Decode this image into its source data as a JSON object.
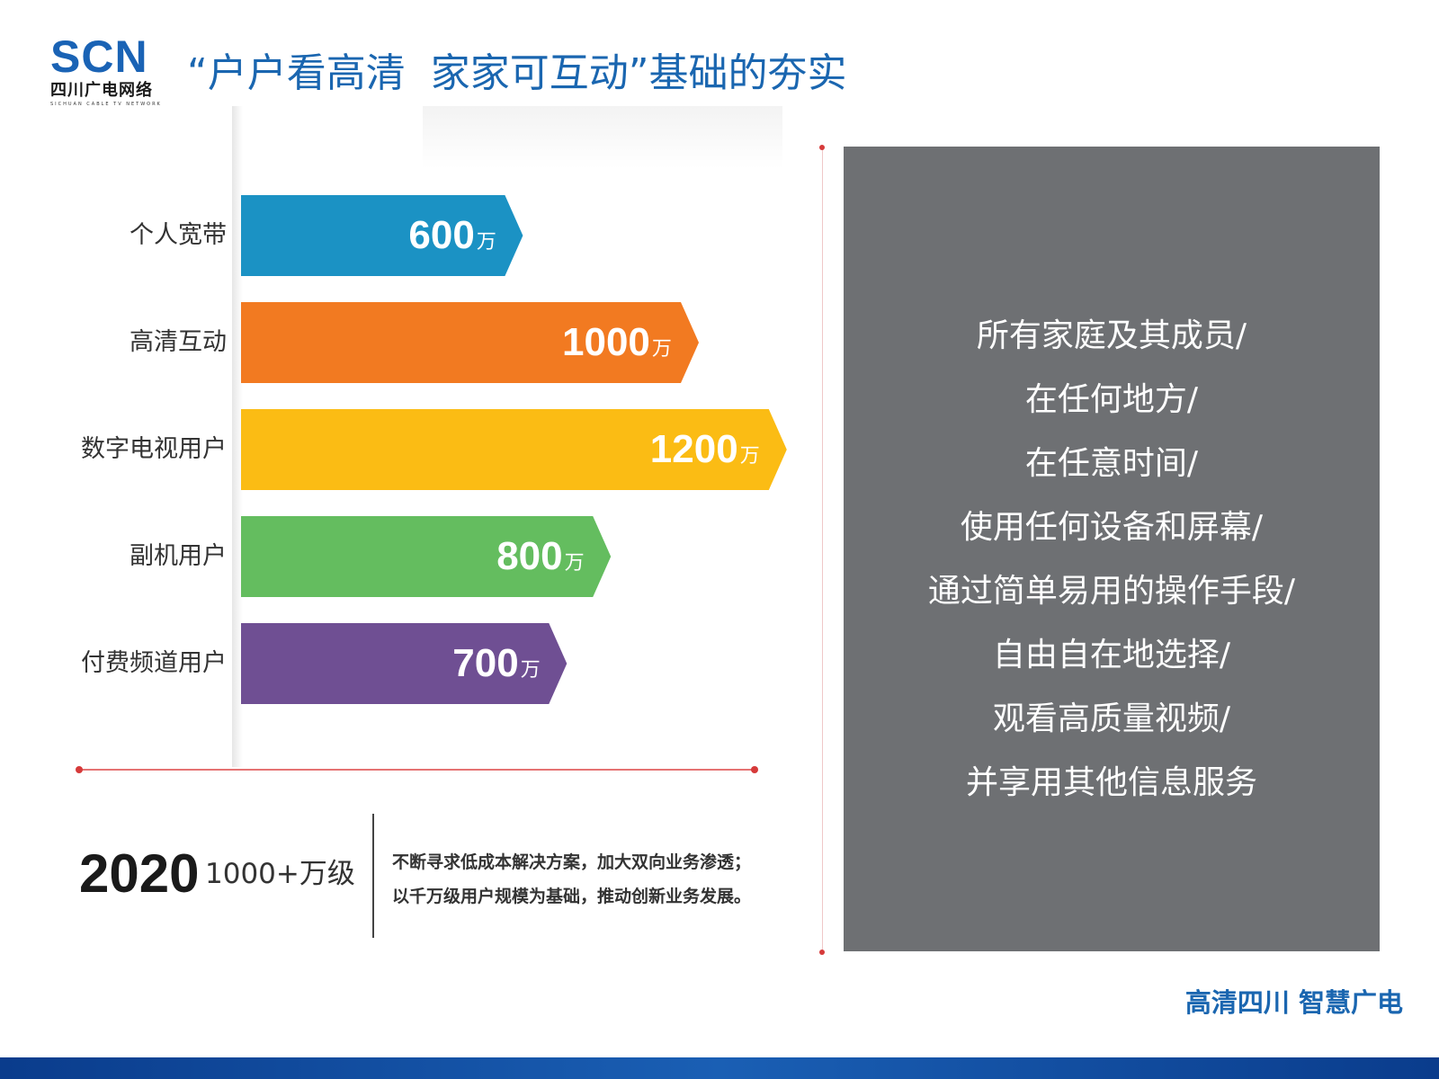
{
  "logo": {
    "mark": "SCN",
    "cn": "四川广电网络",
    "en": "SICHUAN CABLE TV NETWORK"
  },
  "title": "“户户看高清  家家可互动”基础的夯实",
  "rows": [
    {
      "label": "个人宽带",
      "value": "600",
      "unit": "万",
      "amount": 600,
      "color": "#1b92c4"
    },
    {
      "label": "高清互动",
      "value": "1000",
      "unit": "万",
      "amount": 1000,
      "color": "#f27a21"
    },
    {
      "label": "数字电视用户",
      "value": "1200",
      "unit": "万",
      "amount": 1200,
      "color": "#fbbc14"
    },
    {
      "label": "副机用户",
      "value": "800",
      "unit": "万",
      "amount": 800,
      "color": "#64bd5f"
    },
    {
      "label": "付费频道用户",
      "value": "700",
      "unit": "万",
      "amount": 700,
      "color": "#6f4f93"
    }
  ],
  "summary": {
    "year": "2020",
    "scale": "1000+万级",
    "desc": [
      "不断寻求低成本解决方案，加大双向业务渗透；",
      "以千万级用户规模为基础，推动创新业务发展。"
    ]
  },
  "grey_panel": {
    "lines": [
      "所有家庭及其成员/",
      "在任何地方/",
      "在任意时间/",
      "使用任何设备和屏幕/",
      "通过简单易用的操作手段/",
      "自由自在地选择/",
      "观看高质量视频/",
      "并享用其他信息服务"
    ]
  },
  "slogan": "高清四川 智慧广电",
  "colors": {
    "accent": "#1a66b0",
    "grey_panel": "#6e7073",
    "axis": "#e57373"
  }
}
